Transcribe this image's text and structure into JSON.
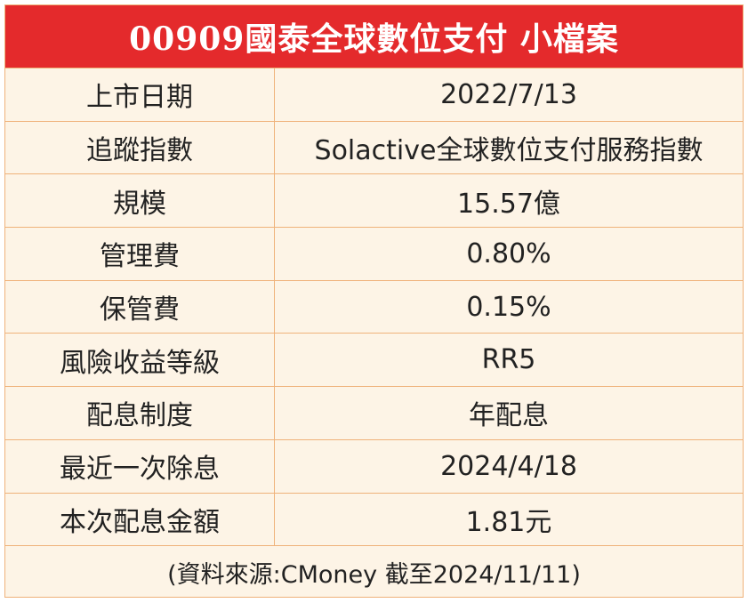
{
  "header": {
    "title": "00909國泰全球數位支付 小檔案"
  },
  "table": {
    "rows": [
      [
        "上市日期",
        "2022/7/13"
      ],
      [
        "追蹤指數",
        "Solactive全球數位支付服務指數"
      ],
      [
        "規模",
        "15.57億"
      ],
      [
        "管理費",
        "0.80%"
      ],
      [
        "保管費",
        "0.15%"
      ],
      [
        "風險收益等級",
        "RR5"
      ],
      [
        "配息制度",
        "年配息"
      ],
      [
        "最近一次除息",
        "2024/4/18"
      ],
      [
        "本次配息金額",
        "1.81元"
      ]
    ]
  },
  "footer": {
    "note": "(資料來源:CMoney 截至2024/11/11)"
  }
}
